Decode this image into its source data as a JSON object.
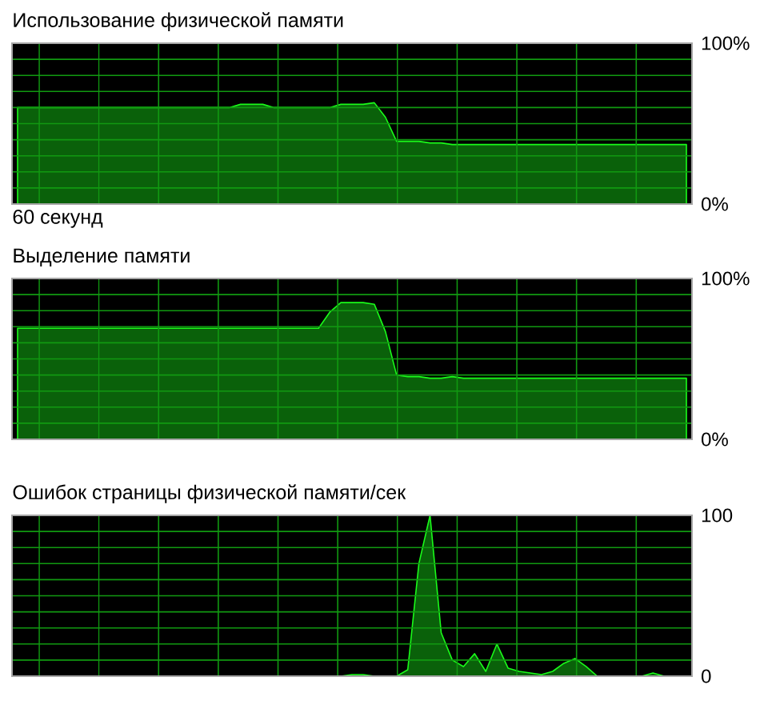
{
  "chart_data": [
    {
      "type": "area",
      "title": "Использование физической памяти",
      "xlabel": "60 секунд",
      "ylim": [
        0,
        100
      ],
      "grid": true,
      "tick_labels": "y",
      "categories": [
        null,
        null,
        null,
        null,
        null,
        null,
        null,
        null,
        null,
        null,
        null,
        null,
        null,
        null,
        null,
        null,
        null,
        null,
        null,
        null,
        null,
        null,
        null,
        null,
        null,
        null,
        null,
        null,
        null,
        null,
        null,
        null,
        null,
        null,
        null,
        null,
        null,
        null,
        null,
        null,
        null,
        null,
        null,
        null,
        null,
        null,
        null,
        null,
        null,
        null,
        null,
        null,
        null,
        null,
        null,
        null,
        null,
        null,
        null,
        null,
        null
      ],
      "yticks": [
        {
          "value": 0,
          "label": "0%"
        },
        {
          "value": 10,
          "label": null
        },
        {
          "value": 20,
          "label": null
        },
        {
          "value": 30,
          "label": null
        },
        {
          "value": 40,
          "label": null
        },
        {
          "value": 50,
          "label": null
        },
        {
          "value": 60,
          "label": null
        },
        {
          "value": 70,
          "label": null
        },
        {
          "value": 80,
          "label": null
        },
        {
          "value": 90,
          "label": null
        },
        {
          "value": 100,
          "label": "100%"
        }
      ],
      "series": [
        {
          "color": "#0a610a",
          "values": [
            60,
            60,
            60,
            60,
            60,
            60,
            60,
            60,
            60,
            60,
            60,
            60,
            60,
            60,
            60,
            60,
            60,
            60,
            60,
            60,
            62,
            62,
            62,
            60,
            60,
            60,
            60,
            60,
            60,
            62,
            62,
            62,
            63,
            54,
            39,
            39,
            39,
            38,
            38,
            37,
            37,
            37,
            37,
            37,
            37,
            37,
            37,
            37,
            37,
            37,
            37,
            37,
            37,
            37,
            37,
            37,
            37,
            37,
            37,
            37,
            37
          ]
        }
      ]
    },
    {
      "type": "area",
      "title": "Выделение памяти",
      "ylim": [
        0,
        100
      ],
      "grid": true,
      "tick_labels": "y",
      "categories": [
        null,
        null,
        null,
        null,
        null,
        null,
        null,
        null,
        null,
        null,
        null,
        null,
        null,
        null,
        null,
        null,
        null,
        null,
        null,
        null,
        null,
        null,
        null,
        null,
        null,
        null,
        null,
        null,
        null,
        null,
        null,
        null,
        null,
        null,
        null,
        null,
        null,
        null,
        null,
        null,
        null,
        null,
        null,
        null,
        null,
        null,
        null,
        null,
        null,
        null,
        null,
        null,
        null,
        null,
        null,
        null,
        null,
        null,
        null,
        null,
        null
      ],
      "yticks": [
        {
          "value": 0,
          "label": "0%"
        },
        {
          "value": 10,
          "label": null
        },
        {
          "value": 20,
          "label": null
        },
        {
          "value": 30,
          "label": null
        },
        {
          "value": 40,
          "label": null
        },
        {
          "value": 50,
          "label": null
        },
        {
          "value": 60,
          "label": null
        },
        {
          "value": 70,
          "label": null
        },
        {
          "value": 80,
          "label": null
        },
        {
          "value": 90,
          "label": null
        },
        {
          "value": 100,
          "label": "100%"
        }
      ],
      "series": [
        {
          "color": "#0a610a",
          "values": [
            69,
            69,
            69,
            69,
            69,
            69,
            69,
            69,
            69,
            69,
            69,
            69,
            69,
            69,
            69,
            69,
            69,
            69,
            69,
            69,
            69,
            69,
            69,
            69,
            69,
            69,
            69,
            69,
            79,
            85,
            85,
            85,
            84,
            67,
            40,
            39,
            39,
            38,
            38,
            39,
            38,
            38,
            38,
            38,
            38,
            38,
            38,
            38,
            38,
            38,
            38,
            38,
            38,
            38,
            38,
            38,
            38,
            38,
            38,
            38,
            38
          ]
        }
      ]
    },
    {
      "type": "area",
      "title": "Ошибок страницы физической памяти/сек",
      "ylim": [
        0,
        100
      ],
      "grid": true,
      "tick_labels": "y",
      "categories": [
        null,
        null,
        null,
        null,
        null,
        null,
        null,
        null,
        null,
        null,
        null,
        null,
        null,
        null,
        null,
        null,
        null,
        null,
        null,
        null,
        null,
        null,
        null,
        null,
        null,
        null,
        null,
        null,
        null,
        null,
        null,
        null,
        null,
        null,
        null,
        null,
        null,
        null,
        null,
        null,
        null,
        null,
        null,
        null,
        null,
        null,
        null,
        null,
        null,
        null,
        null,
        null,
        null,
        null,
        null,
        null,
        null,
        null,
        null,
        null,
        null
      ],
      "yticks": [
        {
          "value": 0,
          "label": "0"
        },
        {
          "value": 10,
          "label": null
        },
        {
          "value": 20,
          "label": null
        },
        {
          "value": 30,
          "label": null
        },
        {
          "value": 40,
          "label": null
        },
        {
          "value": 50,
          "label": null
        },
        {
          "value": 60,
          "label": null
        },
        {
          "value": 70,
          "label": null
        },
        {
          "value": 80,
          "label": null
        },
        {
          "value": 90,
          "label": null
        },
        {
          "value": 100,
          "label": "100"
        }
      ],
      "series": [
        {
          "color": "#0a610a",
          "values": [
            0,
            0,
            0,
            0,
            0,
            0,
            0,
            0,
            0,
            0,
            0,
            0,
            0,
            0,
            0,
            0,
            0,
            0,
            0,
            0,
            0,
            0,
            0,
            0,
            0,
            0,
            0,
            0,
            0,
            0,
            1,
            1,
            0,
            0,
            0,
            4,
            70,
            100,
            27,
            10,
            6,
            14,
            3,
            20,
            5,
            3,
            2,
            1,
            3,
            8,
            11,
            6,
            0,
            0,
            0,
            0,
            0,
            2,
            0,
            0,
            0
          ]
        }
      ]
    }
  ]
}
